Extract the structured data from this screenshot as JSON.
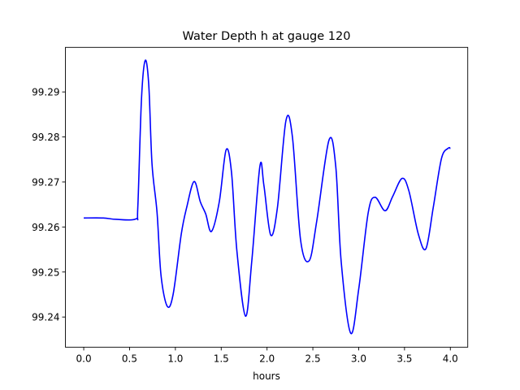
{
  "chart_data": {
    "type": "line",
    "title": "Water Depth h at gauge 120",
    "xlabel": "hours",
    "ylabel": "",
    "xlim": [
      -0.2,
      4.19
    ],
    "ylim": [
      99.2333,
      99.2999
    ],
    "xticks": [
      0.0,
      0.5,
      1.0,
      1.5,
      2.0,
      2.5,
      3.0,
      3.5,
      4.0
    ],
    "xtick_labels": [
      "0.0",
      "0.5",
      "1.0",
      "1.5",
      "2.0",
      "2.5",
      "3.0",
      "3.5",
      "4.0"
    ],
    "yticks": [
      99.24,
      99.25,
      99.26,
      99.27,
      99.28,
      99.29
    ],
    "ytick_labels": [
      "99.24",
      "99.25",
      "99.26",
      "99.27",
      "99.28",
      "99.29"
    ],
    "grid": false,
    "series": [
      {
        "name": "h",
        "color": "#0000ff",
        "x": [
          0.0,
          0.21,
          0.355,
          0.568,
          0.59,
          0.63,
          0.671,
          0.71,
          0.745,
          0.8,
          0.843,
          0.911,
          0.976,
          1.064,
          1.124,
          1.204,
          1.272,
          1.331,
          1.393,
          1.479,
          1.553,
          1.612,
          1.671,
          1.765,
          1.833,
          1.922,
          1.966,
          2.04,
          2.114,
          2.206,
          2.277,
          2.366,
          2.46,
          2.543,
          2.676,
          2.75,
          2.809,
          2.913,
          3.001,
          3.104,
          3.179,
          3.288,
          3.371,
          3.474,
          3.548,
          3.651,
          3.734,
          3.814,
          3.903,
          3.977,
          4.0
        ],
        "y": [
          99.262,
          99.262,
          99.2617,
          99.2618,
          99.2644,
          99.2884,
          99.297,
          99.2914,
          99.274,
          99.2632,
          99.2493,
          99.2424,
          99.2451,
          99.2584,
          99.2644,
          99.2701,
          99.2656,
          99.2629,
          99.259,
          99.2656,
          99.2771,
          99.2722,
          99.2547,
          99.2402,
          99.2523,
          99.2735,
          99.2692,
          99.2582,
          99.2644,
          99.2836,
          99.28,
          99.2571,
          99.2525,
          99.2614,
          99.2793,
          99.2734,
          99.2523,
          99.2364,
          99.2463,
          99.2632,
          99.2666,
          99.2636,
          99.2668,
          99.2708,
          99.268,
          99.2584,
          99.2552,
          99.2644,
          99.2752,
          99.2775,
          99.2774
        ]
      }
    ]
  }
}
